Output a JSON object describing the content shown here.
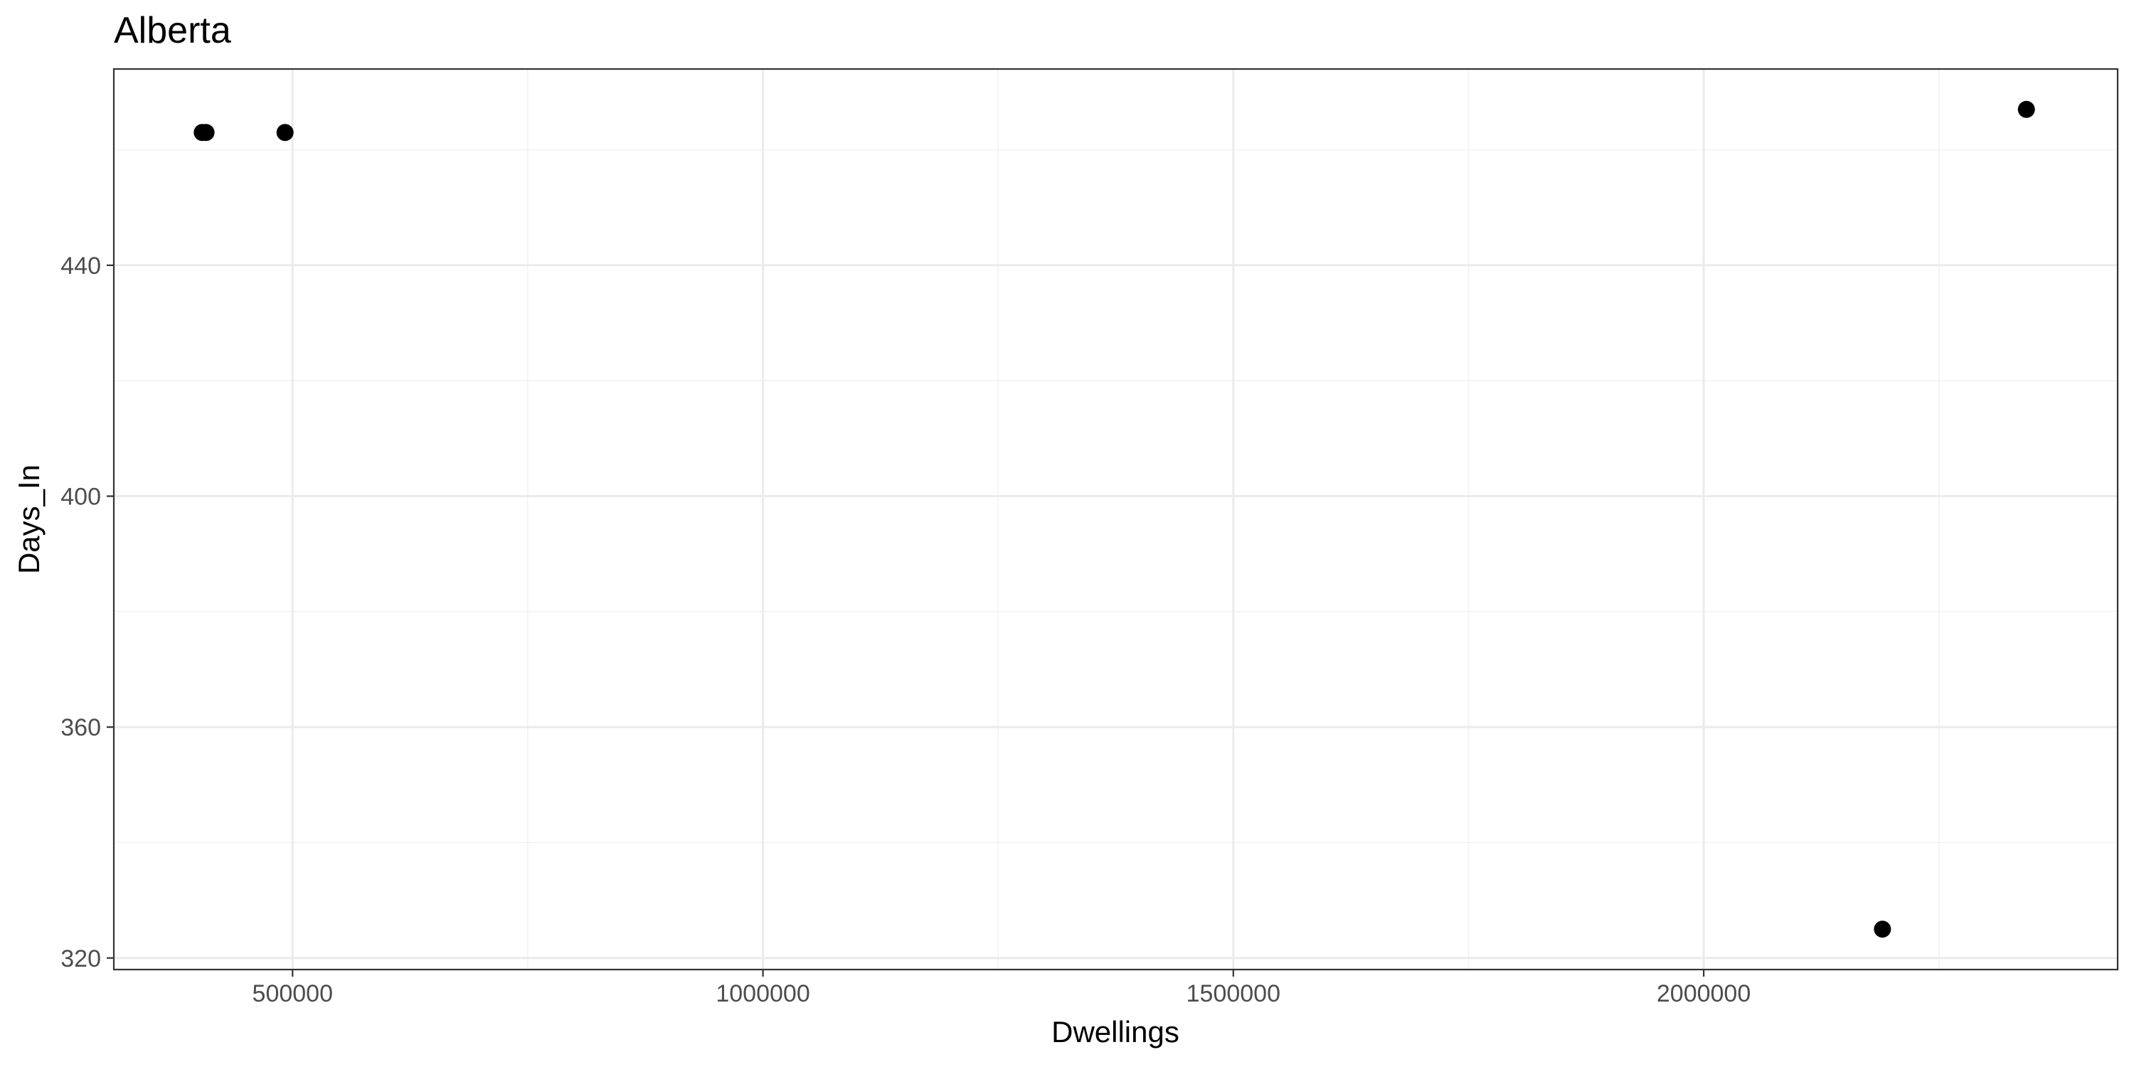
{
  "chart_data": {
    "type": "scatter",
    "title": "Alberta",
    "xlabel": "Dwellings",
    "ylabel": "Days_In",
    "xlim": [
      310000,
      2440000
    ],
    "ylim": [
      318,
      474
    ],
    "x_ticks": [
      500000,
      1000000,
      1500000,
      2000000
    ],
    "x_tick_labels": [
      "500000",
      "1000000",
      "1500000",
      "2000000"
    ],
    "x_minor_ticks": [
      750000,
      1250000,
      1750000,
      2250000
    ],
    "y_ticks": [
      320,
      360,
      400,
      440
    ],
    "y_tick_labels": [
      "320",
      "360",
      "400",
      "440"
    ],
    "y_minor_ticks": [
      340,
      380,
      420,
      460
    ],
    "grid": true,
    "point_color": "#000000",
    "points": [
      {
        "x": 404000,
        "y": 463
      },
      {
        "x": 408000,
        "y": 463
      },
      {
        "x": 492000,
        "y": 463
      },
      {
        "x": 2190000,
        "y": 325
      },
      {
        "x": 2343000,
        "y": 467
      }
    ]
  }
}
